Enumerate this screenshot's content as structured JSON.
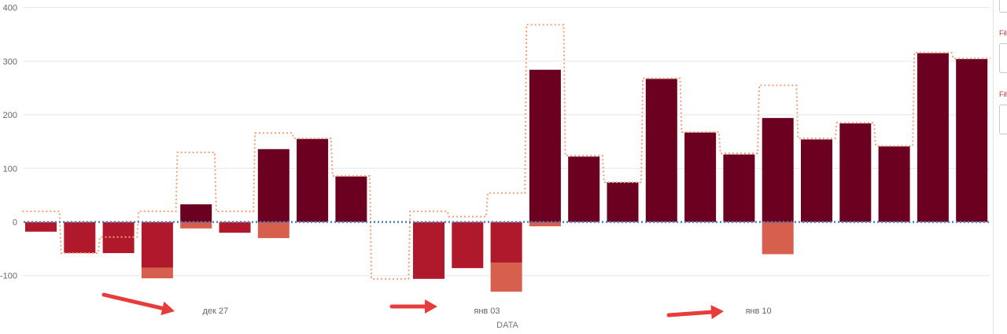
{
  "colors": {
    "positive": "#6b0020",
    "negative": "#b0182c",
    "secondary": "#d6604d",
    "target_line": "#f0a07a",
    "zero_line": "#4a7fc0",
    "grid": "#e6e6e6",
    "arrow": "#e83b3b"
  },
  "chart_data": {
    "type": "bar",
    "title": "",
    "xlabel": "DATA",
    "ylabel": "",
    "ylim": [
      -100,
      400
    ],
    "yticks": [
      -100,
      0,
      100,
      200,
      300,
      400
    ],
    "x_tick_labels": [
      {
        "index": 4.5,
        "label": "дек 27"
      },
      {
        "index": 11.5,
        "label": "янв 03"
      },
      {
        "index": 18.5,
        "label": "янв 10"
      }
    ],
    "grid": true,
    "series": [
      {
        "role": "primary",
        "values": [
          -18,
          -58,
          -58,
          -85,
          33,
          -20,
          136,
          155,
          85,
          0,
          -106,
          -86,
          -76,
          284,
          122,
          74,
          267,
          167,
          126,
          194,
          154,
          184,
          141,
          315,
          304
        ]
      },
      {
        "role": "secondary",
        "values": [
          0,
          0,
          0,
          -20,
          -12,
          0,
          -30,
          0,
          0,
          0,
          0,
          0,
          -54,
          -8,
          0,
          0,
          0,
          0,
          0,
          -60,
          0,
          0,
          0,
          0,
          0
        ]
      },
      {
        "role": "target-step",
        "values": [
          20,
          -58,
          -28,
          20,
          130,
          20,
          166,
          156,
          86,
          -106,
          20,
          10,
          54,
          368,
          124,
          74,
          268,
          168,
          128,
          255,
          156,
          185,
          142,
          316,
          305
        ]
      }
    ],
    "annotations": [
      "arrow",
      "arrow",
      "arrow"
    ]
  },
  "side_panel": {
    "labels": [
      "Fil",
      "Fil"
    ]
  }
}
